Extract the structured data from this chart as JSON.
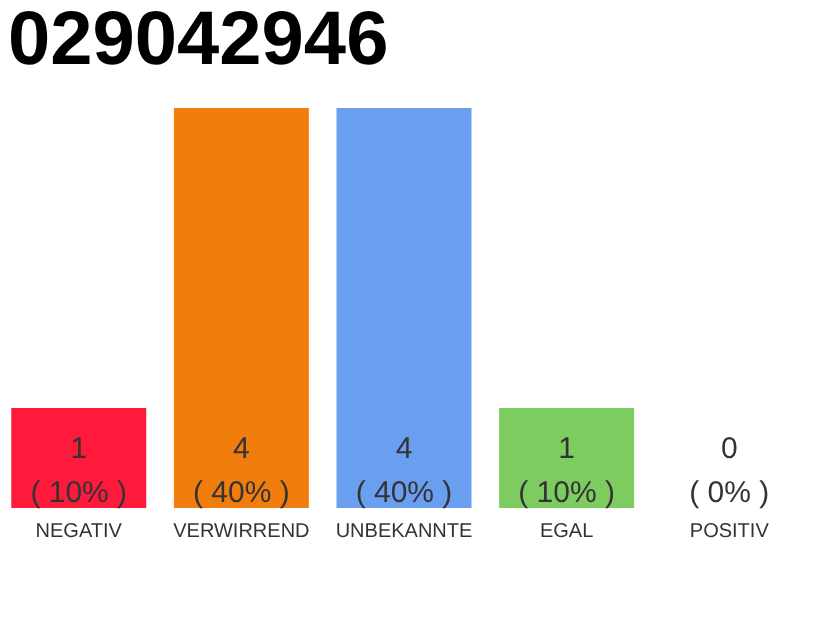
{
  "chart_data": {
    "type": "bar",
    "title": "029042946",
    "categories": [
      "NEGATIV",
      "VERWIRREND",
      "UNBEKANNTE",
      "EGAL",
      "POSITIV"
    ],
    "values": [
      1,
      4,
      4,
      1,
      0
    ],
    "colors": [
      "#ff1a3c",
      "#f07d0c",
      "#6a9ff0",
      "#7ccc60",
      "#7ccc60"
    ],
    "value_labels": [
      "1\n( 10% )",
      "4\n( 40% )",
      "4\n( 40% )",
      "1\n( 10% )",
      "0\n( 0% )"
    ]
  }
}
